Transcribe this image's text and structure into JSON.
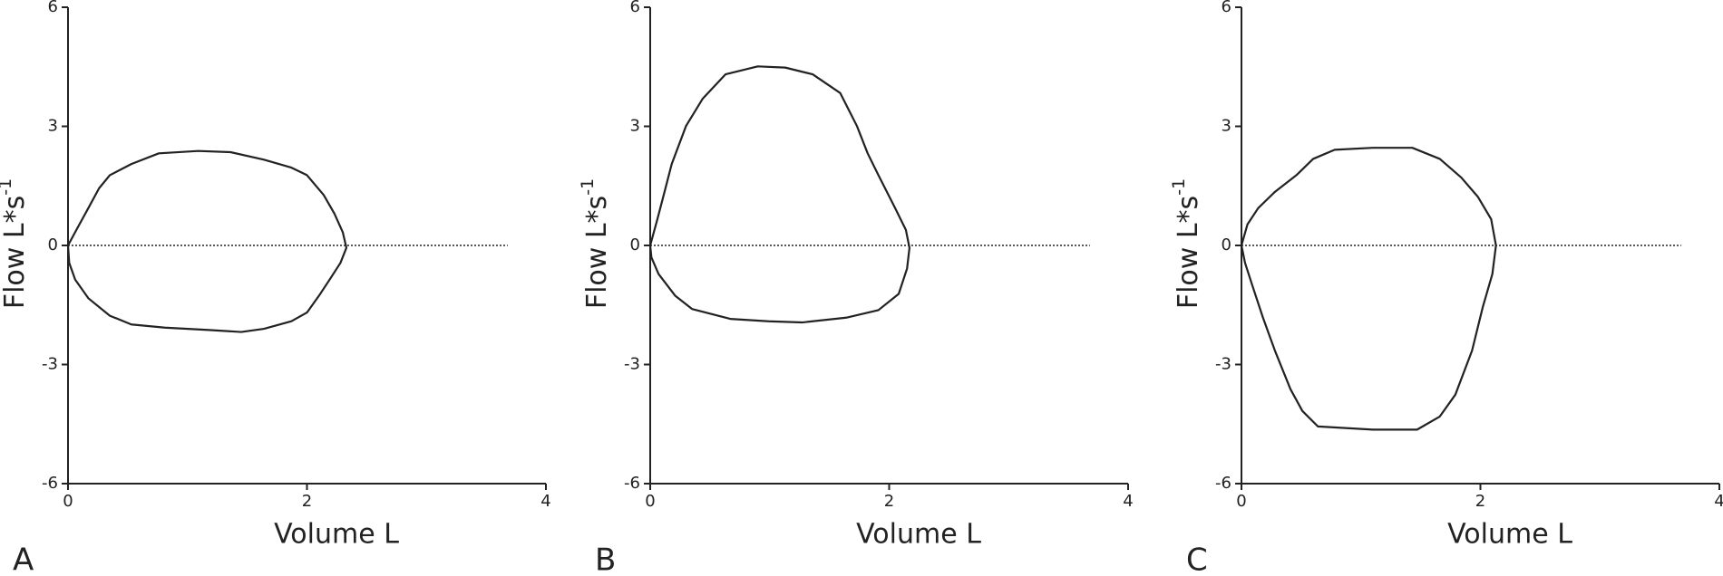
{
  "chart_data": [
    {
      "type": "line",
      "label": "A",
      "xlabel": "Volume L",
      "ylabel": {
        "text": "Flow L*s",
        "superscript": "-1"
      },
      "xlim": [
        0,
        4
      ],
      "ylim": [
        -6,
        6
      ],
      "xticks": [
        0,
        2,
        4
      ],
      "yticks": [
        6,
        3,
        0,
        -3,
        -6
      ],
      "color": "#222222",
      "reference_line": {
        "y": 0,
        "x_end": 3.68
      },
      "x": [
        0,
        0.07,
        0.17,
        0.26,
        0.35,
        0.53,
        0.76,
        1.09,
        1.36,
        1.64,
        1.87,
        2.0,
        2.14,
        2.23,
        2.3,
        2.33,
        2.28,
        2.19,
        2.1,
        2.0,
        1.87,
        1.64,
        1.45,
        1.18,
        0.81,
        0.53,
        0.35,
        0.17,
        0.06,
        0.01,
        0
      ],
      "values": [
        0,
        0.39,
        0.94,
        1.44,
        1.77,
        2.05,
        2.32,
        2.38,
        2.35,
        2.16,
        1.96,
        1.77,
        1.27,
        0.8,
        0.33,
        -0.06,
        -0.44,
        -0.86,
        -1.27,
        -1.69,
        -1.91,
        -2.1,
        -2.18,
        -2.13,
        -2.07,
        -1.99,
        -1.77,
        -1.33,
        -0.86,
        -0.44,
        0
      ]
    },
    {
      "type": "line",
      "label": "B",
      "xlabel": "Volume L",
      "ylabel": {
        "text": "Flow L*s",
        "superscript": "-1"
      },
      "xlim": [
        0,
        4
      ],
      "ylim": [
        -6,
        6
      ],
      "xticks": [
        0,
        2,
        4
      ],
      "yticks": [
        6,
        3,
        0,
        -3,
        -6
      ],
      "color": "#222222",
      "reference_line": {
        "y": 0,
        "x_end": 3.68
      },
      "x": [
        0,
        0.06,
        0.12,
        0.18,
        0.3,
        0.44,
        0.63,
        0.9,
        1.13,
        1.36,
        1.59,
        1.73,
        1.82,
        1.91,
        2.05,
        2.14,
        2.17,
        2.15,
        2.08,
        1.91,
        1.64,
        1.27,
        0.99,
        0.67,
        0.35,
        0.21,
        0.07,
        0.01,
        0
      ],
      "values": [
        0,
        0.66,
        1.35,
        2.05,
        3.01,
        3.7,
        4.31,
        4.51,
        4.48,
        4.31,
        3.84,
        3.01,
        2.32,
        1.77,
        0.94,
        0.39,
        -0.06,
        -0.58,
        -1.22,
        -1.63,
        -1.82,
        -1.94,
        -1.91,
        -1.85,
        -1.6,
        -1.27,
        -0.72,
        -0.3,
        0
      ]
    },
    {
      "type": "line",
      "label": "C",
      "xlabel": "Volume L",
      "ylabel": {
        "text": "Flow L*s",
        "superscript": "-1"
      },
      "xlim": [
        0,
        4
      ],
      "ylim": [
        -6,
        6
      ],
      "xticks": [
        0,
        2,
        4
      ],
      "yticks": [
        6,
        3,
        0,
        -3,
        -6
      ],
      "color": "#222222",
      "reference_line": {
        "y": 0,
        "x_end": 3.68
      },
      "x": [
        0,
        0.05,
        0.14,
        0.28,
        0.46,
        0.6,
        0.78,
        1.1,
        1.43,
        1.66,
        1.84,
        1.98,
        2.09,
        2.13,
        2.1,
        2.02,
        1.93,
        1.79,
        1.66,
        1.47,
        1.1,
        0.64,
        0.51,
        0.41,
        0.28,
        0.18,
        0.09,
        0.03,
        0
      ],
      "values": [
        0,
        0.53,
        0.94,
        1.35,
        1.77,
        2.18,
        2.41,
        2.46,
        2.46,
        2.18,
        1.71,
        1.22,
        0.66,
        0,
        -0.72,
        -1.55,
        -2.65,
        -3.76,
        -4.31,
        -4.64,
        -4.64,
        -4.56,
        -4.17,
        -3.62,
        -2.65,
        -1.82,
        -1.0,
        -0.44,
        0
      ]
    }
  ]
}
